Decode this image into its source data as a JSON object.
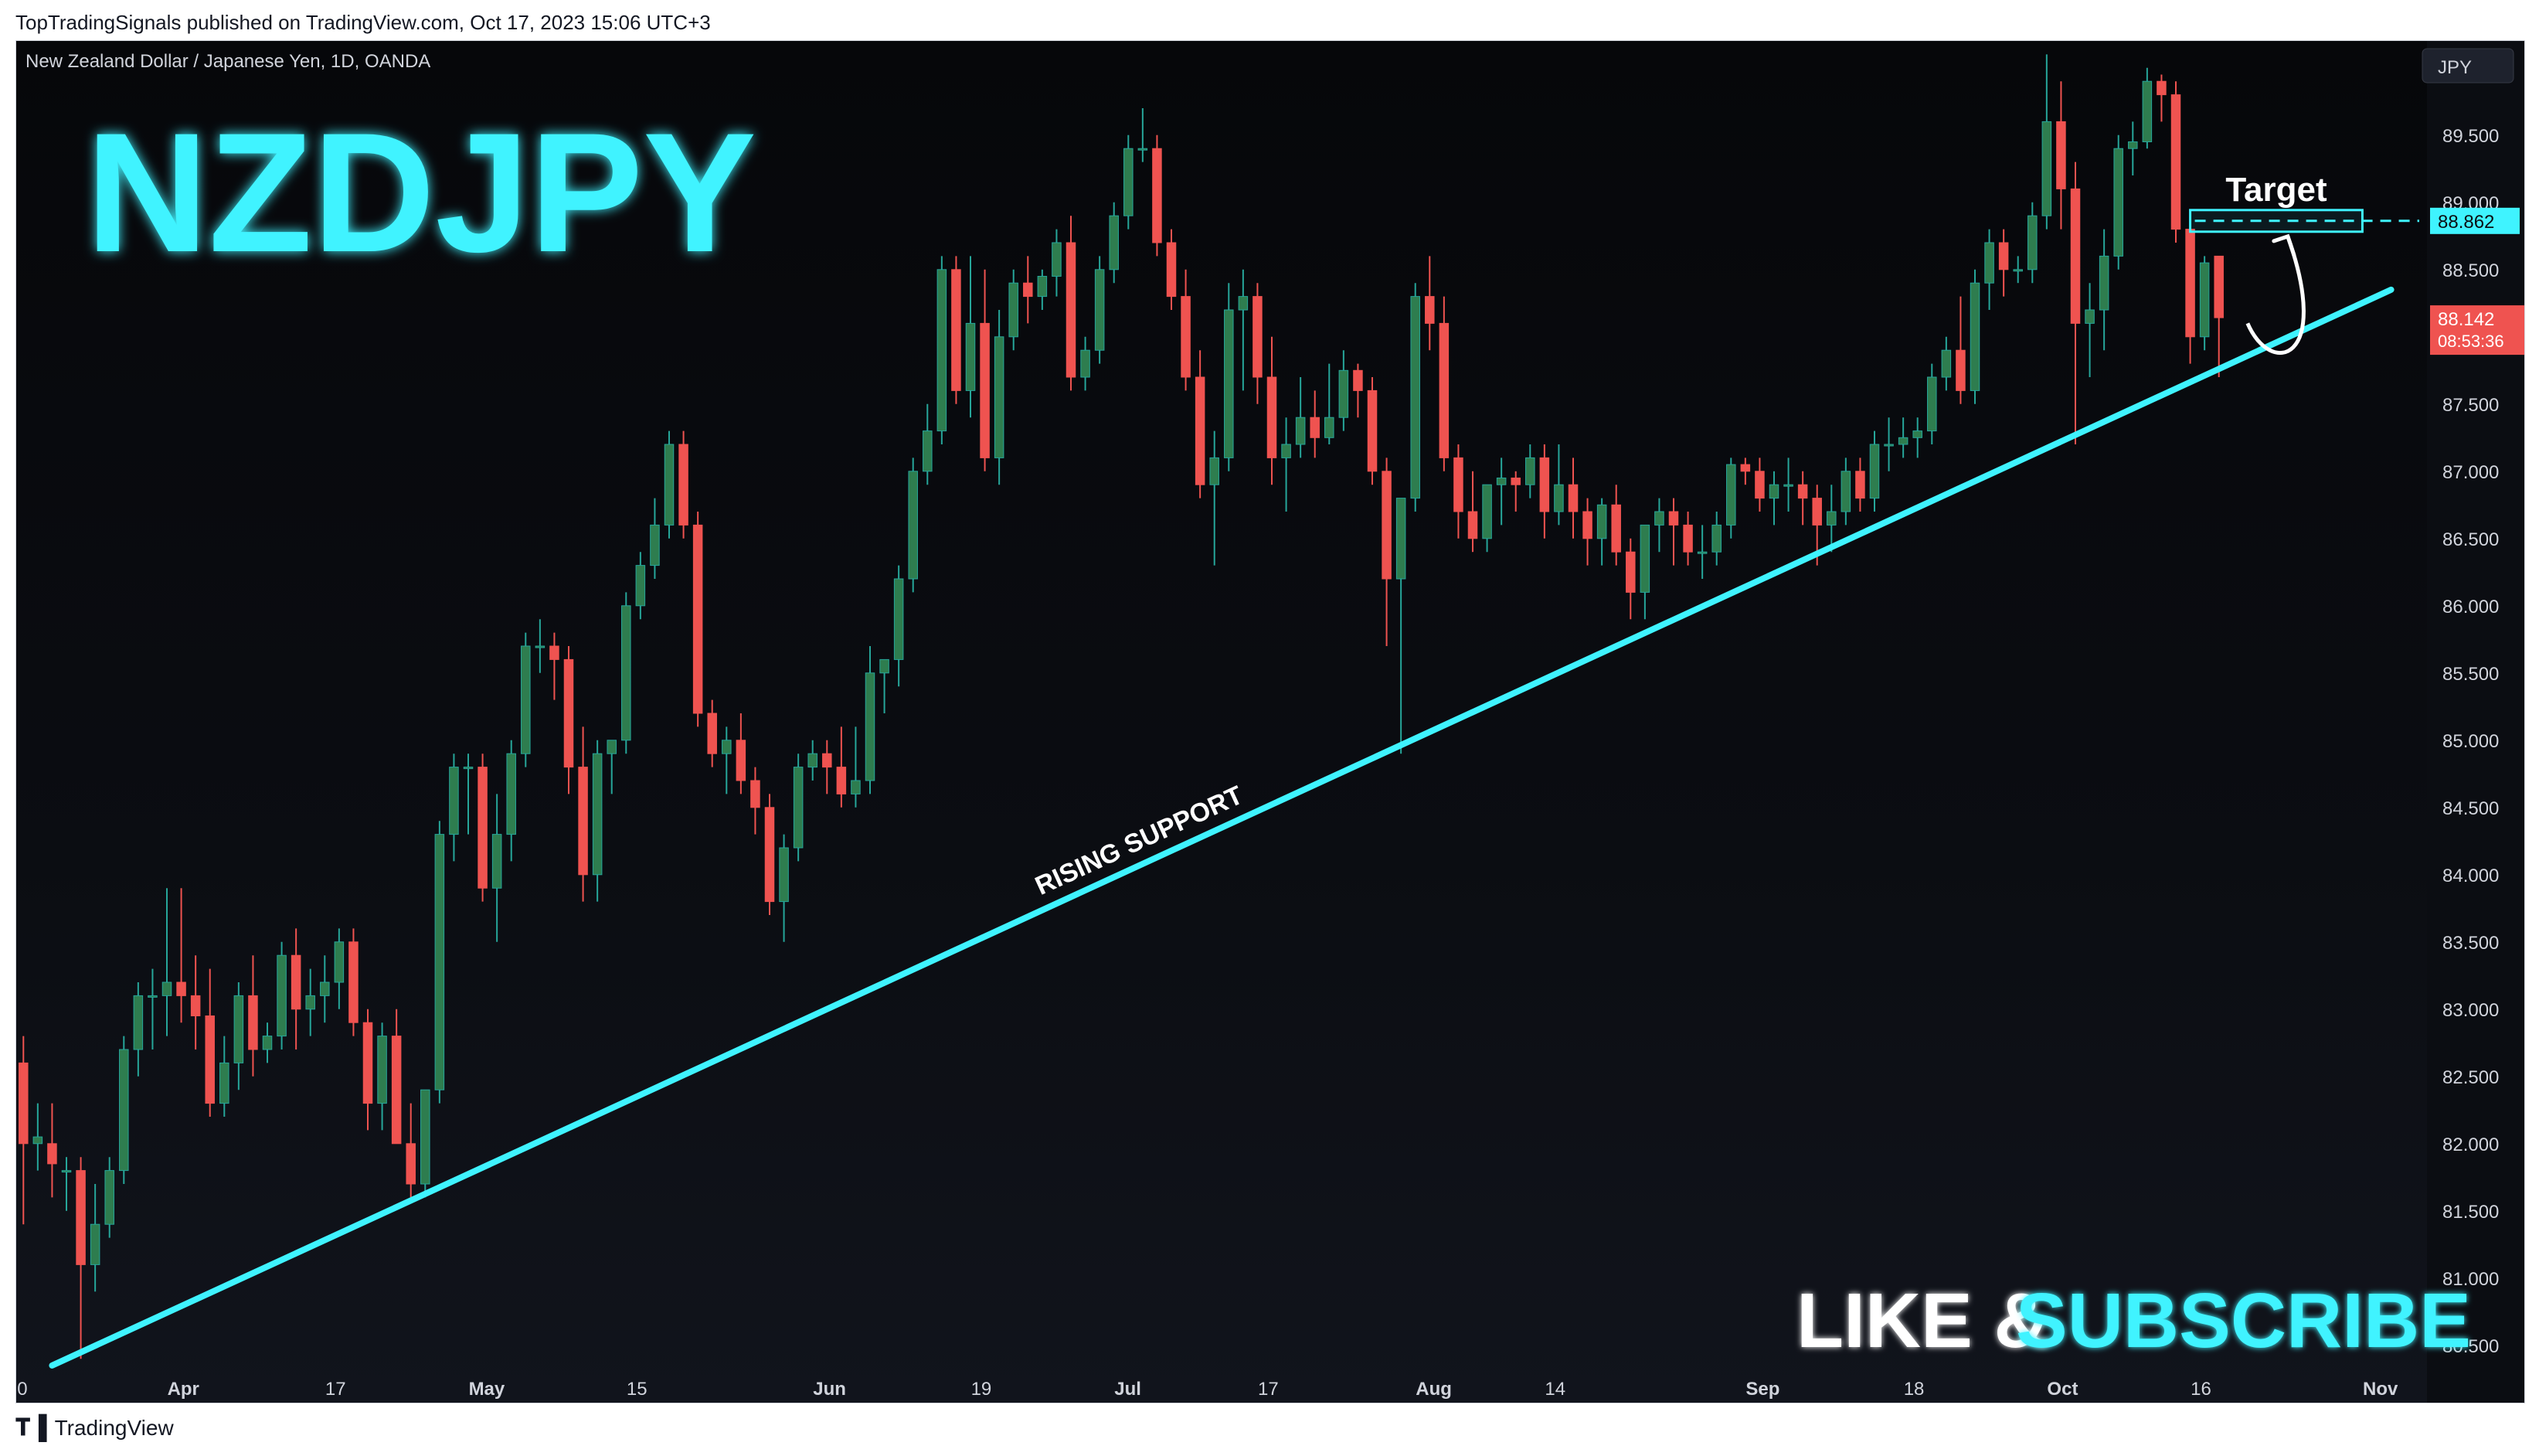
{
  "header": {
    "published": "TopTradingSignals published on TradingView.com, Oct 17, 2023 15:06 UTC+3"
  },
  "chart_header": {
    "symbol_line": "New Zealand Dollar / Japanese Yen, 1D, OANDA",
    "currency_button": "JPY"
  },
  "overlay": {
    "pair": "NZDJPY",
    "support_label": "RISING SUPPORT",
    "target_label": "Target",
    "cta_like": "LIKE &",
    "cta_subscribe": "SUBSCRIBE"
  },
  "price_labels": {
    "target": "88.862",
    "current": "88.142",
    "countdown": "08:53:36"
  },
  "footer": {
    "brand": "TradingView"
  },
  "colors": {
    "up": "#26a69a",
    "up_body": "#2e7d4f",
    "down": "#ef5350",
    "accent": "#3ff3ff",
    "background": "#0b0d12",
    "text_axis": "#d1d4dc"
  },
  "chart_data": {
    "type": "candlestick",
    "title": "New Zealand Dollar / Japanese Yen, 1D, OANDA",
    "ylabel": "JPY",
    "ylim": [
      80.2,
      90.2
    ],
    "y_ticks": [
      80.5,
      81.0,
      81.5,
      82.0,
      82.5,
      83.0,
      83.5,
      84.0,
      84.5,
      85.0,
      85.5,
      86.0,
      86.5,
      87.0,
      87.5,
      88.0,
      88.5,
      89.0,
      89.5
    ],
    "x_ticks": [
      {
        "label": "0",
        "index": 0
      },
      {
        "label": "Apr",
        "index": 11
      },
      {
        "label": "17",
        "index": 22
      },
      {
        "label": "May",
        "index": 32
      },
      {
        "label": "15",
        "index": 43
      },
      {
        "label": "Jun",
        "index": 56
      },
      {
        "label": "19",
        "index": 67
      },
      {
        "label": "Jul",
        "index": 77
      },
      {
        "label": "17",
        "index": 87
      },
      {
        "label": "Aug",
        "index": 98
      },
      {
        "label": "14",
        "index": 107
      },
      {
        "label": "Sep",
        "index": 121
      },
      {
        "label": "18",
        "index": 132
      },
      {
        "label": "Oct",
        "index": 142
      },
      {
        "label": "16",
        "index": 152
      },
      {
        "label": "Nov",
        "index": 164
      }
    ],
    "total_slots": 168,
    "candles": [
      {
        "o": 82.6,
        "h": 82.8,
        "l": 81.4,
        "c": 82.0
      },
      {
        "o": 82.0,
        "h": 82.3,
        "l": 81.8,
        "c": 82.05
      },
      {
        "o": 82.0,
        "h": 82.3,
        "l": 81.6,
        "c": 81.85
      },
      {
        "o": 81.8,
        "h": 81.9,
        "l": 81.5,
        "c": 81.8
      },
      {
        "o": 81.8,
        "h": 81.9,
        "l": 80.4,
        "c": 81.1
      },
      {
        "o": 81.1,
        "h": 81.7,
        "l": 80.9,
        "c": 81.4
      },
      {
        "o": 81.4,
        "h": 81.9,
        "l": 81.3,
        "c": 81.8
      },
      {
        "o": 81.8,
        "h": 82.8,
        "l": 81.7,
        "c": 82.7
      },
      {
        "o": 82.7,
        "h": 83.2,
        "l": 82.5,
        "c": 83.1
      },
      {
        "o": 83.1,
        "h": 83.3,
        "l": 82.7,
        "c": 83.1
      },
      {
        "o": 83.1,
        "h": 83.9,
        "l": 82.8,
        "c": 83.2
      },
      {
        "o": 83.2,
        "h": 83.9,
        "l": 82.9,
        "c": 83.1
      },
      {
        "o": 83.1,
        "h": 83.4,
        "l": 82.7,
        "c": 82.95
      },
      {
        "o": 82.95,
        "h": 83.3,
        "l": 82.2,
        "c": 82.3
      },
      {
        "o": 82.3,
        "h": 82.8,
        "l": 82.2,
        "c": 82.6
      },
      {
        "o": 82.6,
        "h": 83.2,
        "l": 82.4,
        "c": 83.1
      },
      {
        "o": 83.1,
        "h": 83.4,
        "l": 82.5,
        "c": 82.7
      },
      {
        "o": 82.7,
        "h": 82.9,
        "l": 82.6,
        "c": 82.8
      },
      {
        "o": 82.8,
        "h": 83.5,
        "l": 82.7,
        "c": 83.4
      },
      {
        "o": 83.4,
        "h": 83.6,
        "l": 82.7,
        "c": 83.0
      },
      {
        "o": 83.0,
        "h": 83.3,
        "l": 82.8,
        "c": 83.1
      },
      {
        "o": 83.1,
        "h": 83.4,
        "l": 82.9,
        "c": 83.2
      },
      {
        "o": 83.2,
        "h": 83.6,
        "l": 83.0,
        "c": 83.5
      },
      {
        "o": 83.5,
        "h": 83.6,
        "l": 82.8,
        "c": 82.9
      },
      {
        "o": 82.9,
        "h": 83.0,
        "l": 82.1,
        "c": 82.3
      },
      {
        "o": 82.3,
        "h": 82.9,
        "l": 82.1,
        "c": 82.8
      },
      {
        "o": 82.8,
        "h": 83.0,
        "l": 82.1,
        "c": 82.0
      },
      {
        "o": 82.0,
        "h": 82.3,
        "l": 81.6,
        "c": 81.7
      },
      {
        "o": 81.7,
        "h": 82.4,
        "l": 81.6,
        "c": 82.4
      },
      {
        "o": 82.4,
        "h": 84.4,
        "l": 82.3,
        "c": 84.3
      },
      {
        "o": 84.3,
        "h": 84.9,
        "l": 84.1,
        "c": 84.8
      },
      {
        "o": 84.8,
        "h": 84.9,
        "l": 84.3,
        "c": 84.8
      },
      {
        "o": 84.8,
        "h": 84.9,
        "l": 83.8,
        "c": 83.9
      },
      {
        "o": 83.9,
        "h": 84.6,
        "l": 83.5,
        "c": 84.3
      },
      {
        "o": 84.3,
        "h": 85.0,
        "l": 84.1,
        "c": 84.9
      },
      {
        "o": 84.9,
        "h": 85.8,
        "l": 84.8,
        "c": 85.7
      },
      {
        "o": 85.7,
        "h": 85.9,
        "l": 85.5,
        "c": 85.7
      },
      {
        "o": 85.7,
        "h": 85.8,
        "l": 85.3,
        "c": 85.6
      },
      {
        "o": 85.6,
        "h": 85.7,
        "l": 84.6,
        "c": 84.8
      },
      {
        "o": 84.8,
        "h": 85.1,
        "l": 83.8,
        "c": 84.0
      },
      {
        "o": 84.0,
        "h": 85.0,
        "l": 83.8,
        "c": 84.9
      },
      {
        "o": 84.9,
        "h": 85.0,
        "l": 84.6,
        "c": 85.0
      },
      {
        "o": 85.0,
        "h": 86.1,
        "l": 84.9,
        "c": 86.0
      },
      {
        "o": 86.0,
        "h": 86.4,
        "l": 85.9,
        "c": 86.3
      },
      {
        "o": 86.3,
        "h": 86.8,
        "l": 86.2,
        "c": 86.6
      },
      {
        "o": 86.6,
        "h": 87.3,
        "l": 86.5,
        "c": 87.2
      },
      {
        "o": 87.2,
        "h": 87.3,
        "l": 86.5,
        "c": 86.6
      },
      {
        "o": 86.6,
        "h": 86.7,
        "l": 85.1,
        "c": 85.2
      },
      {
        "o": 85.2,
        "h": 85.3,
        "l": 84.8,
        "c": 84.9
      },
      {
        "o": 84.9,
        "h": 85.1,
        "l": 84.6,
        "c": 85.0
      },
      {
        "o": 85.0,
        "h": 85.2,
        "l": 84.6,
        "c": 84.7
      },
      {
        "o": 84.7,
        "h": 84.8,
        "l": 84.3,
        "c": 84.5
      },
      {
        "o": 84.5,
        "h": 84.6,
        "l": 83.7,
        "c": 83.8
      },
      {
        "o": 83.8,
        "h": 84.3,
        "l": 83.5,
        "c": 84.2
      },
      {
        "o": 84.2,
        "h": 84.9,
        "l": 84.1,
        "c": 84.8
      },
      {
        "o": 84.8,
        "h": 85.0,
        "l": 84.7,
        "c": 84.9
      },
      {
        "o": 84.9,
        "h": 85.0,
        "l": 84.6,
        "c": 84.8
      },
      {
        "o": 84.8,
        "h": 85.1,
        "l": 84.5,
        "c": 84.6
      },
      {
        "o": 84.6,
        "h": 85.1,
        "l": 84.5,
        "c": 84.7
      },
      {
        "o": 84.7,
        "h": 85.7,
        "l": 84.6,
        "c": 85.5
      },
      {
        "o": 85.5,
        "h": 85.6,
        "l": 85.2,
        "c": 85.6
      },
      {
        "o": 85.6,
        "h": 86.3,
        "l": 85.4,
        "c": 86.2
      },
      {
        "o": 86.2,
        "h": 87.1,
        "l": 86.1,
        "c": 87.0
      },
      {
        "o": 87.0,
        "h": 87.5,
        "l": 86.9,
        "c": 87.3
      },
      {
        "o": 87.3,
        "h": 88.6,
        "l": 87.2,
        "c": 88.5
      },
      {
        "o": 88.5,
        "h": 88.6,
        "l": 87.5,
        "c": 87.6
      },
      {
        "o": 87.6,
        "h": 88.6,
        "l": 87.4,
        "c": 88.1
      },
      {
        "o": 88.1,
        "h": 88.5,
        "l": 87.0,
        "c": 87.1
      },
      {
        "o": 87.1,
        "h": 88.2,
        "l": 86.9,
        "c": 88.0
      },
      {
        "o": 88.0,
        "h": 88.5,
        "l": 87.9,
        "c": 88.4
      },
      {
        "o": 88.4,
        "h": 88.6,
        "l": 88.1,
        "c": 88.3
      },
      {
        "o": 88.3,
        "h": 88.5,
        "l": 88.2,
        "c": 88.45
      },
      {
        "o": 88.45,
        "h": 88.8,
        "l": 88.3,
        "c": 88.7
      },
      {
        "o": 88.7,
        "h": 88.9,
        "l": 87.6,
        "c": 87.7
      },
      {
        "o": 87.7,
        "h": 88.0,
        "l": 87.6,
        "c": 87.9
      },
      {
        "o": 87.9,
        "h": 88.6,
        "l": 87.8,
        "c": 88.5
      },
      {
        "o": 88.5,
        "h": 89.0,
        "l": 88.4,
        "c": 88.9
      },
      {
        "o": 88.9,
        "h": 89.5,
        "l": 88.8,
        "c": 89.4
      },
      {
        "o": 89.4,
        "h": 89.7,
        "l": 89.3,
        "c": 89.4
      },
      {
        "o": 89.4,
        "h": 89.5,
        "l": 88.6,
        "c": 88.7
      },
      {
        "o": 88.7,
        "h": 88.8,
        "l": 88.2,
        "c": 88.3
      },
      {
        "o": 88.3,
        "h": 88.5,
        "l": 87.6,
        "c": 87.7
      },
      {
        "o": 87.7,
        "h": 87.9,
        "l": 86.8,
        "c": 86.9
      },
      {
        "o": 86.9,
        "h": 87.3,
        "l": 86.3,
        "c": 87.1
      },
      {
        "o": 87.1,
        "h": 88.4,
        "l": 87.0,
        "c": 88.2
      },
      {
        "o": 88.2,
        "h": 88.5,
        "l": 87.6,
        "c": 88.3
      },
      {
        "o": 88.3,
        "h": 88.4,
        "l": 87.5,
        "c": 87.7
      },
      {
        "o": 87.7,
        "h": 88.0,
        "l": 86.9,
        "c": 87.1
      },
      {
        "o": 87.1,
        "h": 87.4,
        "l": 86.7,
        "c": 87.2
      },
      {
        "o": 87.2,
        "h": 87.7,
        "l": 87.1,
        "c": 87.4
      },
      {
        "o": 87.4,
        "h": 87.6,
        "l": 87.1,
        "c": 87.25
      },
      {
        "o": 87.25,
        "h": 87.8,
        "l": 87.2,
        "c": 87.4
      },
      {
        "o": 87.4,
        "h": 87.9,
        "l": 87.3,
        "c": 87.75
      },
      {
        "o": 87.75,
        "h": 87.8,
        "l": 87.4,
        "c": 87.6
      },
      {
        "o": 87.6,
        "h": 87.7,
        "l": 86.9,
        "c": 87.0
      },
      {
        "o": 87.0,
        "h": 87.1,
        "l": 85.7,
        "c": 86.2
      },
      {
        "o": 86.2,
        "h": 86.8,
        "l": 84.9,
        "c": 86.8
      },
      {
        "o": 86.8,
        "h": 88.4,
        "l": 86.7,
        "c": 88.3
      },
      {
        "o": 88.3,
        "h": 88.6,
        "l": 87.9,
        "c": 88.1
      },
      {
        "o": 88.1,
        "h": 88.3,
        "l": 87.0,
        "c": 87.1
      },
      {
        "o": 87.1,
        "h": 87.2,
        "l": 86.5,
        "c": 86.7
      },
      {
        "o": 86.7,
        "h": 87.0,
        "l": 86.4,
        "c": 86.5
      },
      {
        "o": 86.5,
        "h": 86.9,
        "l": 86.4,
        "c": 86.9
      },
      {
        "o": 86.9,
        "h": 87.1,
        "l": 86.6,
        "c": 86.95
      },
      {
        "o": 86.95,
        "h": 87.0,
        "l": 86.7,
        "c": 86.9
      },
      {
        "o": 86.9,
        "h": 87.2,
        "l": 86.8,
        "c": 87.1
      },
      {
        "o": 87.1,
        "h": 87.2,
        "l": 86.5,
        "c": 86.7
      },
      {
        "o": 86.7,
        "h": 87.2,
        "l": 86.6,
        "c": 86.9
      },
      {
        "o": 86.9,
        "h": 87.1,
        "l": 86.5,
        "c": 86.7
      },
      {
        "o": 86.7,
        "h": 86.8,
        "l": 86.3,
        "c": 86.5
      },
      {
        "o": 86.5,
        "h": 86.8,
        "l": 86.3,
        "c": 86.75
      },
      {
        "o": 86.75,
        "h": 86.9,
        "l": 86.3,
        "c": 86.4
      },
      {
        "o": 86.4,
        "h": 86.5,
        "l": 85.9,
        "c": 86.1
      },
      {
        "o": 86.1,
        "h": 86.6,
        "l": 85.9,
        "c": 86.6
      },
      {
        "o": 86.6,
        "h": 86.8,
        "l": 86.4,
        "c": 86.7
      },
      {
        "o": 86.7,
        "h": 86.8,
        "l": 86.3,
        "c": 86.6
      },
      {
        "o": 86.6,
        "h": 86.7,
        "l": 86.3,
        "c": 86.4
      },
      {
        "o": 86.4,
        "h": 86.6,
        "l": 86.2,
        "c": 86.4
      },
      {
        "o": 86.4,
        "h": 86.7,
        "l": 86.3,
        "c": 86.6
      },
      {
        "o": 86.6,
        "h": 87.1,
        "l": 86.5,
        "c": 87.05
      },
      {
        "o": 87.05,
        "h": 87.1,
        "l": 86.9,
        "c": 87.0
      },
      {
        "o": 87.0,
        "h": 87.1,
        "l": 86.7,
        "c": 86.8
      },
      {
        "o": 86.8,
        "h": 87.0,
        "l": 86.6,
        "c": 86.9
      },
      {
        "o": 86.9,
        "h": 87.1,
        "l": 86.7,
        "c": 86.9
      },
      {
        "o": 86.9,
        "h": 87.0,
        "l": 86.6,
        "c": 86.8
      },
      {
        "o": 86.8,
        "h": 86.9,
        "l": 86.3,
        "c": 86.6
      },
      {
        "o": 86.6,
        "h": 86.9,
        "l": 86.4,
        "c": 86.7
      },
      {
        "o": 86.7,
        "h": 87.1,
        "l": 86.6,
        "c": 87.0
      },
      {
        "o": 87.0,
        "h": 87.1,
        "l": 86.7,
        "c": 86.8
      },
      {
        "o": 86.8,
        "h": 87.3,
        "l": 86.7,
        "c": 87.2
      },
      {
        "o": 87.2,
        "h": 87.4,
        "l": 87.0,
        "c": 87.2
      },
      {
        "o": 87.2,
        "h": 87.4,
        "l": 87.1,
        "c": 87.25
      },
      {
        "o": 87.25,
        "h": 87.4,
        "l": 87.1,
        "c": 87.3
      },
      {
        "o": 87.3,
        "h": 87.8,
        "l": 87.2,
        "c": 87.7
      },
      {
        "o": 87.7,
        "h": 88.0,
        "l": 87.6,
        "c": 87.9
      },
      {
        "o": 87.9,
        "h": 88.3,
        "l": 87.5,
        "c": 87.6
      },
      {
        "o": 87.6,
        "h": 88.5,
        "l": 87.5,
        "c": 88.4
      },
      {
        "o": 88.4,
        "h": 88.8,
        "l": 88.2,
        "c": 88.7
      },
      {
        "o": 88.7,
        "h": 88.8,
        "l": 88.3,
        "c": 88.5
      },
      {
        "o": 88.5,
        "h": 88.6,
        "l": 88.4,
        "c": 88.5
      },
      {
        "o": 88.5,
        "h": 89.0,
        "l": 88.4,
        "c": 88.9
      },
      {
        "o": 88.9,
        "h": 90.1,
        "l": 88.8,
        "c": 89.6
      },
      {
        "o": 89.6,
        "h": 89.9,
        "l": 88.8,
        "c": 89.1
      },
      {
        "o": 89.1,
        "h": 89.3,
        "l": 87.2,
        "c": 88.1
      },
      {
        "o": 88.1,
        "h": 88.4,
        "l": 87.7,
        "c": 88.2
      },
      {
        "o": 88.2,
        "h": 88.8,
        "l": 87.9,
        "c": 88.6
      },
      {
        "o": 88.6,
        "h": 89.5,
        "l": 88.5,
        "c": 89.4
      },
      {
        "o": 89.4,
        "h": 89.6,
        "l": 89.2,
        "c": 89.45
      },
      {
        "o": 89.45,
        "h": 90.0,
        "l": 89.4,
        "c": 89.9
      },
      {
        "o": 89.9,
        "h": 89.95,
        "l": 89.6,
        "c": 89.8
      },
      {
        "o": 89.8,
        "h": 89.9,
        "l": 88.7,
        "c": 88.8
      },
      {
        "o": 88.8,
        "h": 88.9,
        "l": 87.8,
        "c": 88.0
      },
      {
        "o": 88.0,
        "h": 88.6,
        "l": 87.9,
        "c": 88.55
      },
      {
        "o": 88.6,
        "h": 88.6,
        "l": 87.7,
        "c": 88.142
      }
    ],
    "support_line": {
      "start": {
        "index": 2,
        "price": 80.35
      },
      "end": {
        "index": 165,
        "price": 88.35
      }
    },
    "target_price": 88.862,
    "current_price": 88.142
  }
}
